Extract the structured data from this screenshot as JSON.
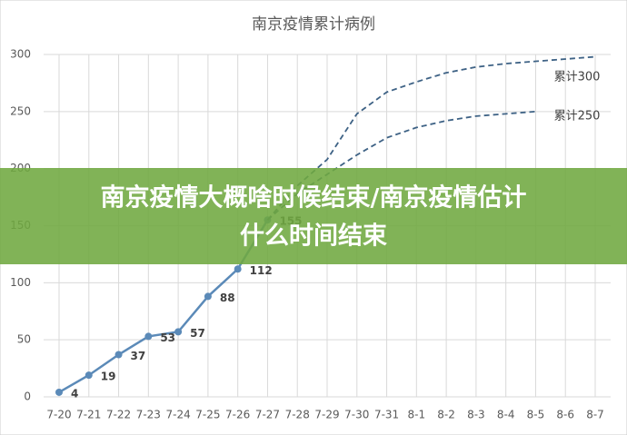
{
  "chart_data": {
    "type": "line",
    "title": "南京疫情累计病例",
    "categories": [
      "7-20",
      "7-21",
      "7-22",
      "7-23",
      "7-24",
      "7-25",
      "7-26",
      "7-27",
      "7-28",
      "7-29",
      "7-30",
      "7-31",
      "8-1",
      "8-2",
      "8-3",
      "8-4",
      "8-5",
      "8-6",
      "8-7"
    ],
    "series": [
      {
        "color": "#5b8ab8",
        "dashed": false,
        "markers": true,
        "labels": true,
        "values": [
          4,
          19,
          37,
          53,
          57,
          88,
          112,
          155,
          null,
          null,
          null,
          null,
          null,
          null,
          null,
          null,
          null,
          null,
          null
        ]
      },
      {
        "name": "累计300",
        "color": "#3e6285",
        "dashed": true,
        "markers": false,
        "labels": false,
        "values": [
          null,
          null,
          null,
          null,
          null,
          null,
          null,
          155,
          185,
          208,
          248,
          267,
          276,
          284,
          289,
          292,
          294,
          296,
          298
        ]
      },
      {
        "name": "累计250",
        "color": "#3e6285",
        "dashed": true,
        "markers": false,
        "labels": false,
        "values": [
          null,
          null,
          null,
          null,
          null,
          null,
          null,
          155,
          178,
          195,
          212,
          227,
          236,
          242,
          246,
          248,
          250,
          null,
          null
        ]
      }
    ],
    "ylim": [
      0,
      300
    ],
    "yticks": [
      0,
      50,
      100,
      150,
      200,
      250,
      300
    ],
    "grid": true
  },
  "overlay": {
    "lines": [
      "南京疫情大概啥时候结束/南京疫情估计",
      "什么时间结束"
    ]
  }
}
